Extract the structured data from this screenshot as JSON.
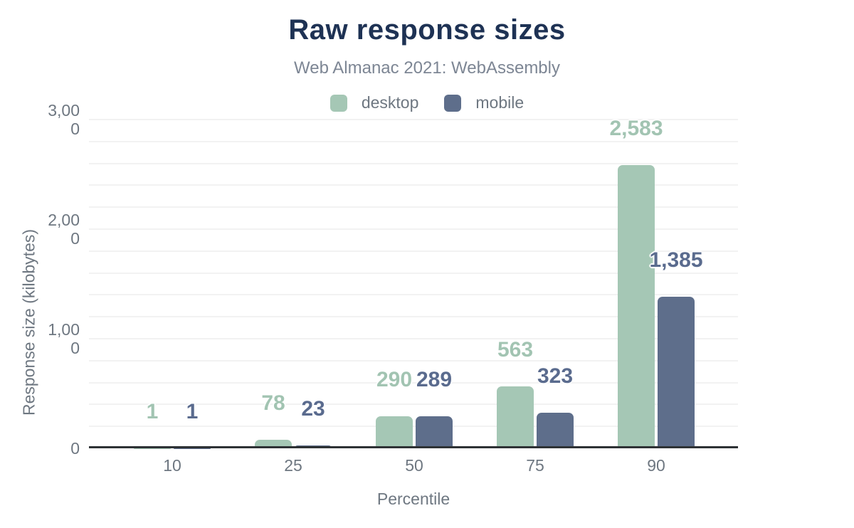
{
  "chart_data": {
    "type": "bar",
    "title": "Raw response sizes",
    "subtitle": "Web Almanac 2021: WebAssembly",
    "xlabel": "Percentile",
    "ylabel": "Response size (kilobytes)",
    "categories": [
      "10",
      "25",
      "50",
      "75",
      "90"
    ],
    "series": [
      {
        "name": "desktop",
        "color": "#a5c7b5",
        "label_color": "#a2c4b2",
        "values": [
          1,
          78,
          290,
          563,
          2583
        ],
        "labels": [
          "1",
          "78",
          "290",
          "563",
          "2,583"
        ]
      },
      {
        "name": "mobile",
        "color": "#5e6e8b",
        "label_color": "#5a6b8e",
        "values": [
          1,
          23,
          289,
          323,
          1385
        ],
        "labels": [
          "1",
          "23",
          "289",
          "323",
          "1,385"
        ]
      }
    ],
    "ylim": [
      0,
      3000
    ],
    "yticks": [
      {
        "value": 0,
        "lines": [
          "0"
        ]
      },
      {
        "value": 1000,
        "lines": [
          "1,00",
          "0"
        ]
      },
      {
        "value": 2000,
        "lines": [
          "2,00",
          "0"
        ]
      },
      {
        "value": 3000,
        "lines": [
          "3,00",
          "0"
        ]
      }
    ],
    "grid": {
      "interval": 200,
      "on": true
    },
    "legend_position": "top"
  },
  "colors": {
    "title": "#1e3254",
    "subtitle": "#7d8694",
    "axis_text": "#6e7781",
    "gridline": "#f2f2f2",
    "axis_line": "#2e3235",
    "background": "#ffffff"
  }
}
